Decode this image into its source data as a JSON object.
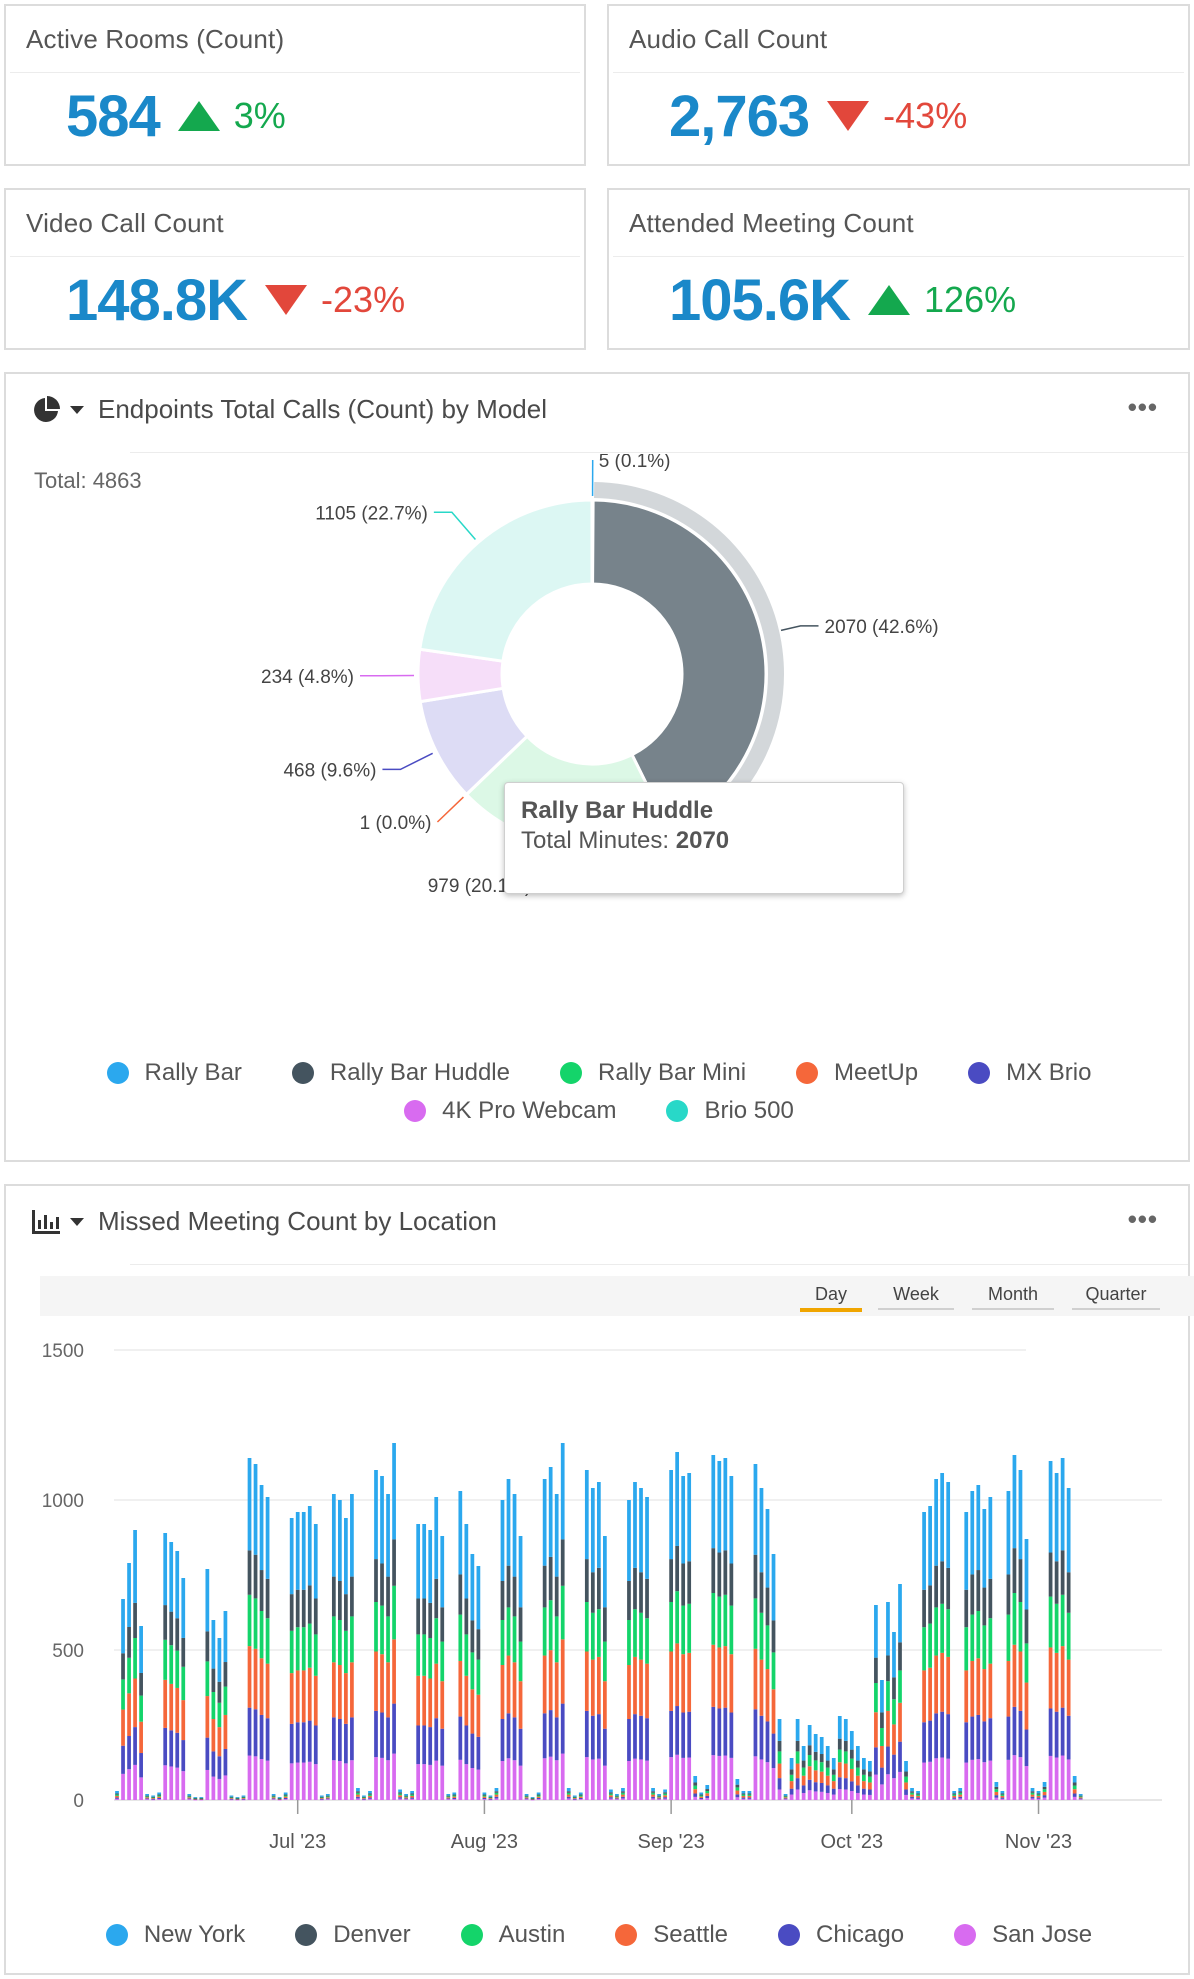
{
  "kpis": {
    "active_rooms": {
      "title": "Active Rooms (Count)",
      "value": "584",
      "delta": "3%",
      "trend": "up"
    },
    "audio_calls": {
      "title": "Audio Call Count",
      "value": "2,763",
      "delta": "-43%",
      "trend": "down"
    },
    "video_calls": {
      "title": "Video Call Count",
      "value": "148.8K",
      "delta": "-23%",
      "trend": "down"
    },
    "attended_meetings": {
      "title": "Attended Meeting Count",
      "value": "105.6K",
      "delta": "126%",
      "trend": "up"
    }
  },
  "donut_panel": {
    "icon": "pie-chart-icon",
    "title": "Endpoints Total Calls (Count) by Model",
    "more": "•••",
    "total_label": "Total: 4863",
    "tooltip": {
      "title": "Rally Bar Huddle",
      "label": "Total Minutes:",
      "value": "2070"
    },
    "legend": [
      {
        "name": "Rally Bar",
        "color": "#2ba8ee"
      },
      {
        "name": "Rally Bar Huddle",
        "color": "#44545f"
      },
      {
        "name": "Rally Bar Mini",
        "color": "#14d46a"
      },
      {
        "name": "MeetUp",
        "color": "#f5673a"
      },
      {
        "name": "MX Brio",
        "color": "#4a4bc2"
      },
      {
        "name": "4K Pro Webcam",
        "color": "#d86bf0"
      },
      {
        "name": "Brio 500",
        "color": "#28d8c8"
      }
    ]
  },
  "chart_data": [
    {
      "type": "pie",
      "title": "Endpoints Total Calls (Count) by Model",
      "total": 4863,
      "slices": [
        {
          "name": "Rally Bar",
          "value": 5,
          "label": "5 (0.1%)",
          "color": "#2ba8ee",
          "fill": "#2ba8ee"
        },
        {
          "name": "Rally Bar Huddle",
          "value": 2070,
          "label": "2070 (42.6%)",
          "color": "#44545f",
          "fill": "#77838b"
        },
        {
          "name": "Rally Bar Mini",
          "value": 979,
          "label": "979 (20.1%)",
          "color": "#14d46a",
          "fill": "#dcf8e6"
        },
        {
          "name": "MeetUp",
          "value": 1,
          "label": "1 (0.0%)",
          "color": "#f5673a",
          "fill": "#f5673a"
        },
        {
          "name": "MX Brio",
          "value": 468,
          "label": "468 (9.6%)",
          "color": "#4a4bc2",
          "fill": "#dddcf5"
        },
        {
          "name": "4K Pro Webcam",
          "value": 234,
          "label": "234 (4.8%)",
          "color": "#d86bf0",
          "fill": "#f6def9"
        },
        {
          "name": "Brio 500",
          "value": 1105,
          "label": "1105 (22.7%)",
          "color": "#28d8c8",
          "fill": "#dcf7f3"
        }
      ],
      "highlighted": "Rally Bar Huddle"
    },
    {
      "type": "bar",
      "stacked": true,
      "title": "Missed Meeting Count by Location",
      "ylim": [
        0,
        1500
      ],
      "y_ticks": [
        "0",
        "500",
        "1000",
        "1500"
      ],
      "x_ticks": [
        "Jul '23",
        "Aug '23",
        "Sep '23",
        "Oct '23",
        "Nov '23"
      ],
      "x_tick_dates": [
        "2023-07-01",
        "2023-08-01",
        "2023-09-01",
        "2023-10-01",
        "2023-11-01"
      ],
      "x_start": "2023-06-01",
      "x_end": "2023-11-21",
      "range_options": [
        "Day",
        "Week",
        "Month",
        "Quarter"
      ],
      "range_selected": "Day",
      "series": [
        {
          "name": "San Jose",
          "color": "#d86bf0",
          "share": 0.13
        },
        {
          "name": "Chicago",
          "color": "#4a4bc2",
          "share": 0.14
        },
        {
          "name": "Seattle",
          "color": "#f5673a",
          "share": 0.18
        },
        {
          "name": "Austin",
          "color": "#14d46a",
          "share": 0.15
        },
        {
          "name": "Denver",
          "color": "#44545f",
          "share": 0.13
        },
        {
          "name": "New York",
          "color": "#2ba8ee",
          "share": 0.27
        }
      ],
      "weekly_totals": [
        [
          30,
          670,
          790,
          900,
          580,
          20,
          15
        ],
        [
          25,
          890,
          860,
          830,
          740,
          20,
          10
        ],
        [
          10,
          770,
          600,
          540,
          630,
          15,
          10
        ],
        [
          15,
          1140,
          1120,
          1050,
          1010,
          20,
          10
        ],
        [
          25,
          940,
          960,
          960,
          980,
          920,
          15
        ],
        [
          20,
          1020,
          1000,
          940,
          1020,
          40,
          15
        ],
        [
          30,
          1100,
          1080,
          1020,
          1190,
          35,
          20
        ],
        [
          30,
          920,
          920,
          900,
          1010,
          880,
          20
        ],
        [
          25,
          1030,
          920,
          820,
          780,
          25,
          15
        ],
        [
          40,
          1000,
          1070,
          1020,
          880,
          20,
          10
        ],
        [
          25,
          1070,
          1110,
          1020,
          1190,
          40,
          15
        ],
        [
          25,
          1100,
          1040,
          1060,
          880,
          35,
          20
        ],
        [
          40,
          1000,
          1060,
          1040,
          1010,
          40,
          20
        ],
        [
          35,
          1100,
          1160,
          1080,
          1090,
          80,
          25
        ],
        [
          50,
          1150,
          1130,
          1140,
          1080,
          70,
          30
        ],
        [
          30,
          1120,
          1040,
          970,
          820,
          270,
          20
        ],
        [
          140,
          270,
          180,
          250,
          220,
          210,
          180
        ],
        [
          140,
          280,
          270,
          230,
          180,
          140,
          130
        ],
        [
          650,
          400,
          660,
          560,
          720,
          130,
          40
        ],
        [
          30,
          960,
          980,
          1070,
          1090,
          1060,
          30
        ],
        [
          40,
          960,
          1030,
          1050,
          970,
          1010,
          60
        ],
        [
          30,
          1030,
          1150,
          1100,
          870,
          40,
          30
        ],
        [
          60,
          1130,
          1090,
          1140,
          1040,
          80,
          20
        ]
      ]
    }
  ],
  "bar_panel": {
    "icon": "bar-chart-icon",
    "title": "Missed Meeting Count by Location",
    "more": "•••",
    "legend": [
      {
        "name": "New York",
        "color": "#2ba8ee"
      },
      {
        "name": "Denver",
        "color": "#44545f"
      },
      {
        "name": "Austin",
        "color": "#14d46a"
      },
      {
        "name": "Seattle",
        "color": "#f5673a"
      },
      {
        "name": "Chicago",
        "color": "#4a4bc2"
      },
      {
        "name": "San Jose",
        "color": "#d86bf0"
      }
    ]
  }
}
